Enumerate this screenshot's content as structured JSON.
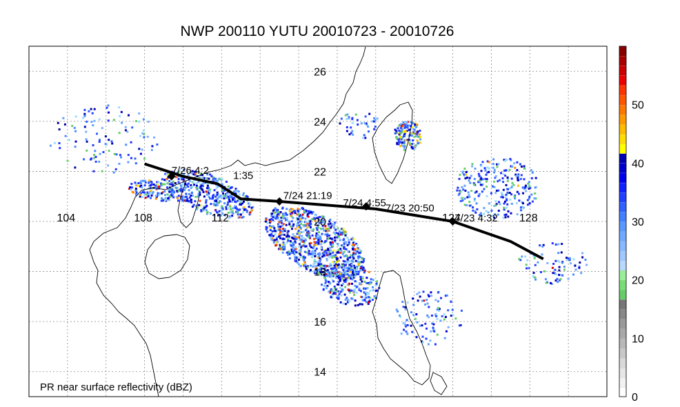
{
  "title": "NWP 200110 YUTU 20010723 - 20010726",
  "caption": "PR near surface reflectivity (dBZ)",
  "lon_labels": [
    "104",
    "108",
    "112",
    "124",
    "128"
  ],
  "lat_labels": [
    "26",
    "24",
    "22",
    "20",
    "18",
    "16",
    "14"
  ],
  "lon_range": [
    102,
    132
  ],
  "lat_range": [
    13,
    27
  ],
  "track": [
    [
      108.0,
      22.3
    ],
    [
      110.0,
      21.8
    ],
    [
      111.8,
      21.5
    ],
    [
      113.0,
      20.9
    ],
    [
      115.0,
      20.8
    ],
    [
      120.0,
      20.5
    ],
    [
      124.0,
      20.0
    ],
    [
      127.0,
      19.2
    ],
    [
      128.7,
      18.5
    ]
  ],
  "track_labels": [
    {
      "text": "7/26 4:2",
      "lon": 109.4,
      "lat": 21.9
    },
    {
      "text": "1:35",
      "lon": 112.6,
      "lat": 21.7
    },
    {
      "text": "7/24 21:19",
      "lon": 115.2,
      "lat": 20.9
    },
    {
      "text": "7/24 4:55",
      "lon": 118.3,
      "lat": 20.6
    },
    {
      "text": "7/23 20:50",
      "lon": 120.5,
      "lat": 20.4
    },
    {
      "text": "7/23 4:32",
      "lon": 124.1,
      "lat": 20.0
    }
  ],
  "track_markers": [
    [
      109.4,
      21.8
    ],
    [
      115.0,
      20.8
    ],
    [
      119.5,
      20.6
    ],
    [
      124.0,
      20.0
    ]
  ],
  "colorbar": {
    "ticks": [
      "50",
      "40",
      "30",
      "20",
      "10",
      "0"
    ],
    "min": 0,
    "max": 60,
    "colors": [
      "#ffffff",
      "#f2f2f2",
      "#e6e6e6",
      "#d9d9d9",
      "#c8c8c8",
      "#b8b8b8",
      "#a8a8a8",
      "#999999",
      "#888888",
      "#777777",
      "#66cc66",
      "#77dd77",
      "#99ee99",
      "#b8d8ff",
      "#a0c8ff",
      "#88b8ff",
      "#6fa8ff",
      "#5898ff",
      "#4080ff",
      "#3060ff",
      "#2040ff",
      "#1020ff",
      "#0000ee",
      "#0000cc",
      "#0000b0",
      "#ffff00",
      "#ffdd00",
      "#ffbb00",
      "#ff9900",
      "#ff7700",
      "#ff5500",
      "#ff3300",
      "#ee0000",
      "#cc0000",
      "#aa0000",
      "#880000"
    ]
  },
  "colors": {
    "track": "#000000",
    "coast": "#000000",
    "grid": "#888888"
  }
}
